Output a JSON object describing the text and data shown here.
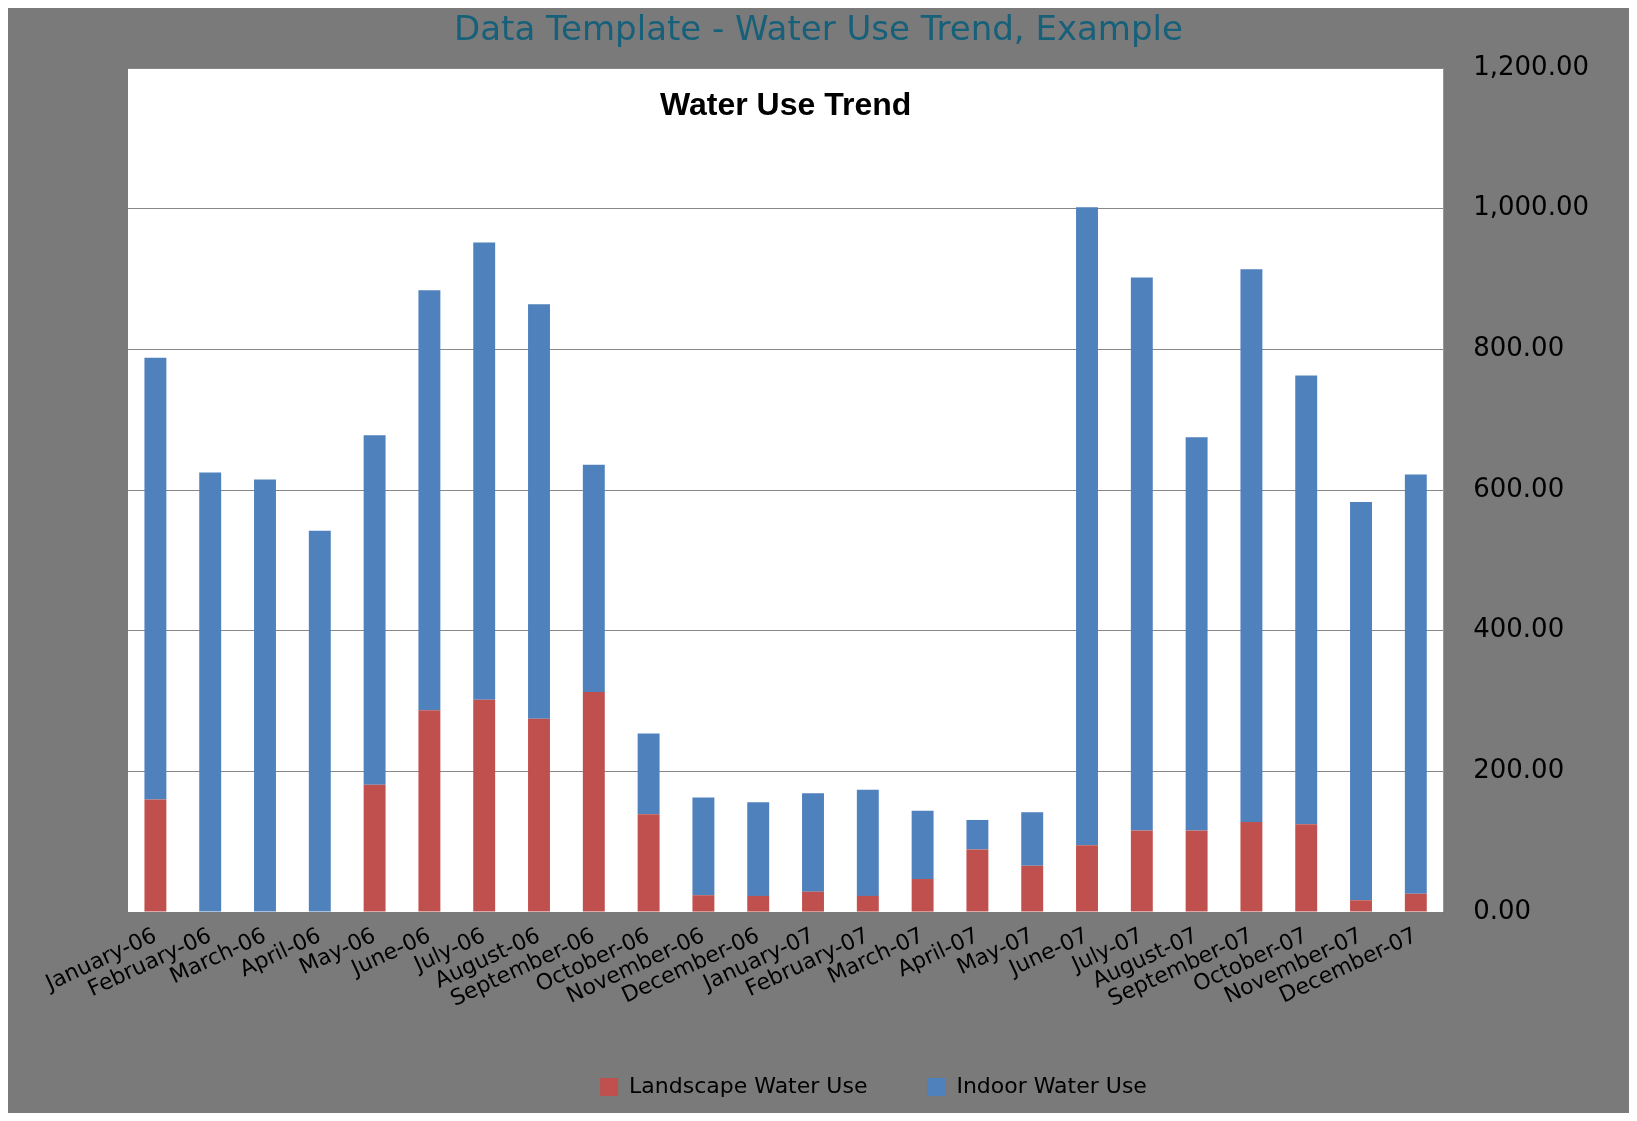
{
  "chart_data": {
    "type": "bar",
    "title": "Water Use Trend",
    "annotations": [
      "Data Template - Water Use Trend, Example"
    ],
    "stacked": true,
    "legend": "bottom",
    "grid": "y",
    "categories": [
      "January-06",
      "February-06",
      "March-06",
      "April-06",
      "May-06",
      "June-06",
      "July-06",
      "August-06",
      "September-06",
      "October-06",
      "November-06",
      "December-06",
      "January-07",
      "February-07",
      "March-07",
      "April-07",
      "May-07",
      "June-07",
      "July-07",
      "August-07",
      "September-07",
      "October-07",
      "November-07",
      "December-07"
    ],
    "series": [
      {
        "name": "Landscape Water Use",
        "color": "#c0504d",
        "values": [
          160,
          0,
          0,
          0,
          181,
          287,
          302,
          275,
          313,
          139,
          24,
          23,
          29,
          23,
          47,
          89,
          66,
          95,
          116,
          116,
          128,
          125,
          17,
          26
        ]
      },
      {
        "name": "Indoor Water Use",
        "color": "#4f81bd",
        "values": [
          628,
          625,
          615,
          542,
          497,
          597,
          650,
          589,
          323,
          115,
          139,
          133,
          140,
          151,
          97,
          42,
          76,
          907,
          786,
          559,
          786,
          638,
          566,
          596
        ]
      }
    ],
    "ylim": [
      0,
      1200
    ],
    "yticks": [
      {
        "value": 0,
        "label": "0.00"
      },
      {
        "value": 200,
        "label": "200.00"
      },
      {
        "value": 400,
        "label": "400.00"
      },
      {
        "value": 600,
        "label": "600.00"
      },
      {
        "value": 800,
        "label": "800.00"
      },
      {
        "value": 1000,
        "label": "1,000.00"
      },
      {
        "value": 1200,
        "label": "1,200.00"
      }
    ]
  }
}
